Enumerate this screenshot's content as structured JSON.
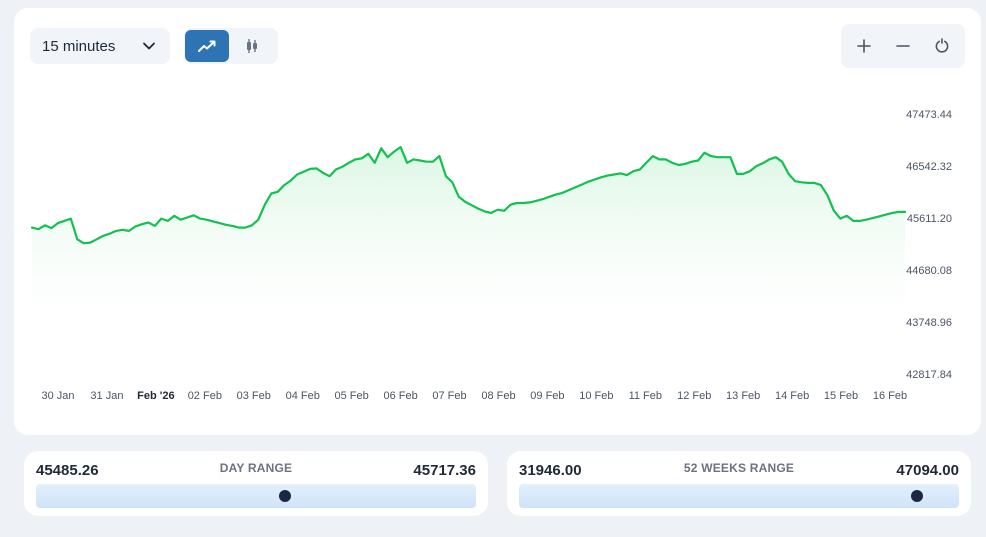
{
  "toolbar": {
    "interval_label": "15 minutes",
    "chart_types": [
      {
        "name": "line",
        "icon": "trend-line-icon",
        "active": true
      },
      {
        "name": "candlestick",
        "icon": "candlestick-icon",
        "active": false
      }
    ],
    "zoom": [
      "zoom-in-icon",
      "zoom-out-icon",
      "reset-icon"
    ]
  },
  "colors": {
    "line": "#12c150",
    "fill_top": "#d9f6e2",
    "accent": "#2e74b5",
    "marker": "#1d2744"
  },
  "chart_data": {
    "type": "area",
    "y_ticks": [
      "47473.44",
      "46542.32",
      "45611.20",
      "44680.08",
      "43748.96",
      "42817.84"
    ],
    "ylim": [
      42817.84,
      47473.44
    ],
    "x_ticks": [
      "30 Jan",
      "31 Jan",
      "Feb '26",
      "02 Feb",
      "03 Feb",
      "04 Feb",
      "05 Feb",
      "06 Feb",
      "07 Feb",
      "08 Feb",
      "09 Feb",
      "10 Feb",
      "11 Feb",
      "12 Feb",
      "13 Feb",
      "14 Feb",
      "15 Feb",
      "16 Feb"
    ],
    "bold_tick": "Feb '26",
    "grid": false,
    "series": [
      {
        "values": [
          45440,
          45410,
          45480,
          45430,
          45520,
          45560,
          45600,
          45230,
          45160,
          45170,
          45230,
          45290,
          45330,
          45380,
          45400,
          45380,
          45460,
          45500,
          45530,
          45470,
          45600,
          45560,
          45650,
          45580,
          45620,
          45660,
          45600,
          45580,
          45550,
          45520,
          45490,
          45470,
          45440,
          45440,
          45480,
          45580,
          45850,
          46050,
          46080,
          46200,
          46280,
          46390,
          46440,
          46490,
          46500,
          46420,
          46360,
          46480,
          46530,
          46600,
          46660,
          46680,
          46760,
          46600,
          46860,
          46700,
          46800,
          46880,
          46600,
          46660,
          46640,
          46620,
          46620,
          46720,
          46360,
          46250,
          45990,
          45900,
          45840,
          45780,
          45730,
          45700,
          45760,
          45740,
          45850,
          45880,
          45880,
          45890,
          45920,
          45950,
          45990,
          46030,
          46060,
          46110,
          46160,
          46210,
          46260,
          46300,
          46340,
          46370,
          46390,
          46410,
          46380,
          46450,
          46480,
          46600,
          46720,
          46660,
          46660,
          46600,
          46560,
          46580,
          46620,
          46640,
          46780,
          46720,
          46700,
          46700,
          46700,
          46400,
          46400,
          46450,
          46540,
          46590,
          46660,
          46700,
          46620,
          46400,
          46270,
          46250,
          46240,
          46240,
          46200,
          46020,
          45740,
          45600,
          45650,
          45560,
          45560,
          45580,
          45610,
          45640,
          45670,
          45700,
          45720,
          45720
        ]
      }
    ]
  },
  "day_range": {
    "title": "DAY RANGE",
    "low": "45485.26",
    "high": "45717.36",
    "position": 0.565
  },
  "week52_range": {
    "title": "52 WEEKS RANGE",
    "low": "31946.00",
    "high": "47094.00",
    "position": 0.905
  }
}
